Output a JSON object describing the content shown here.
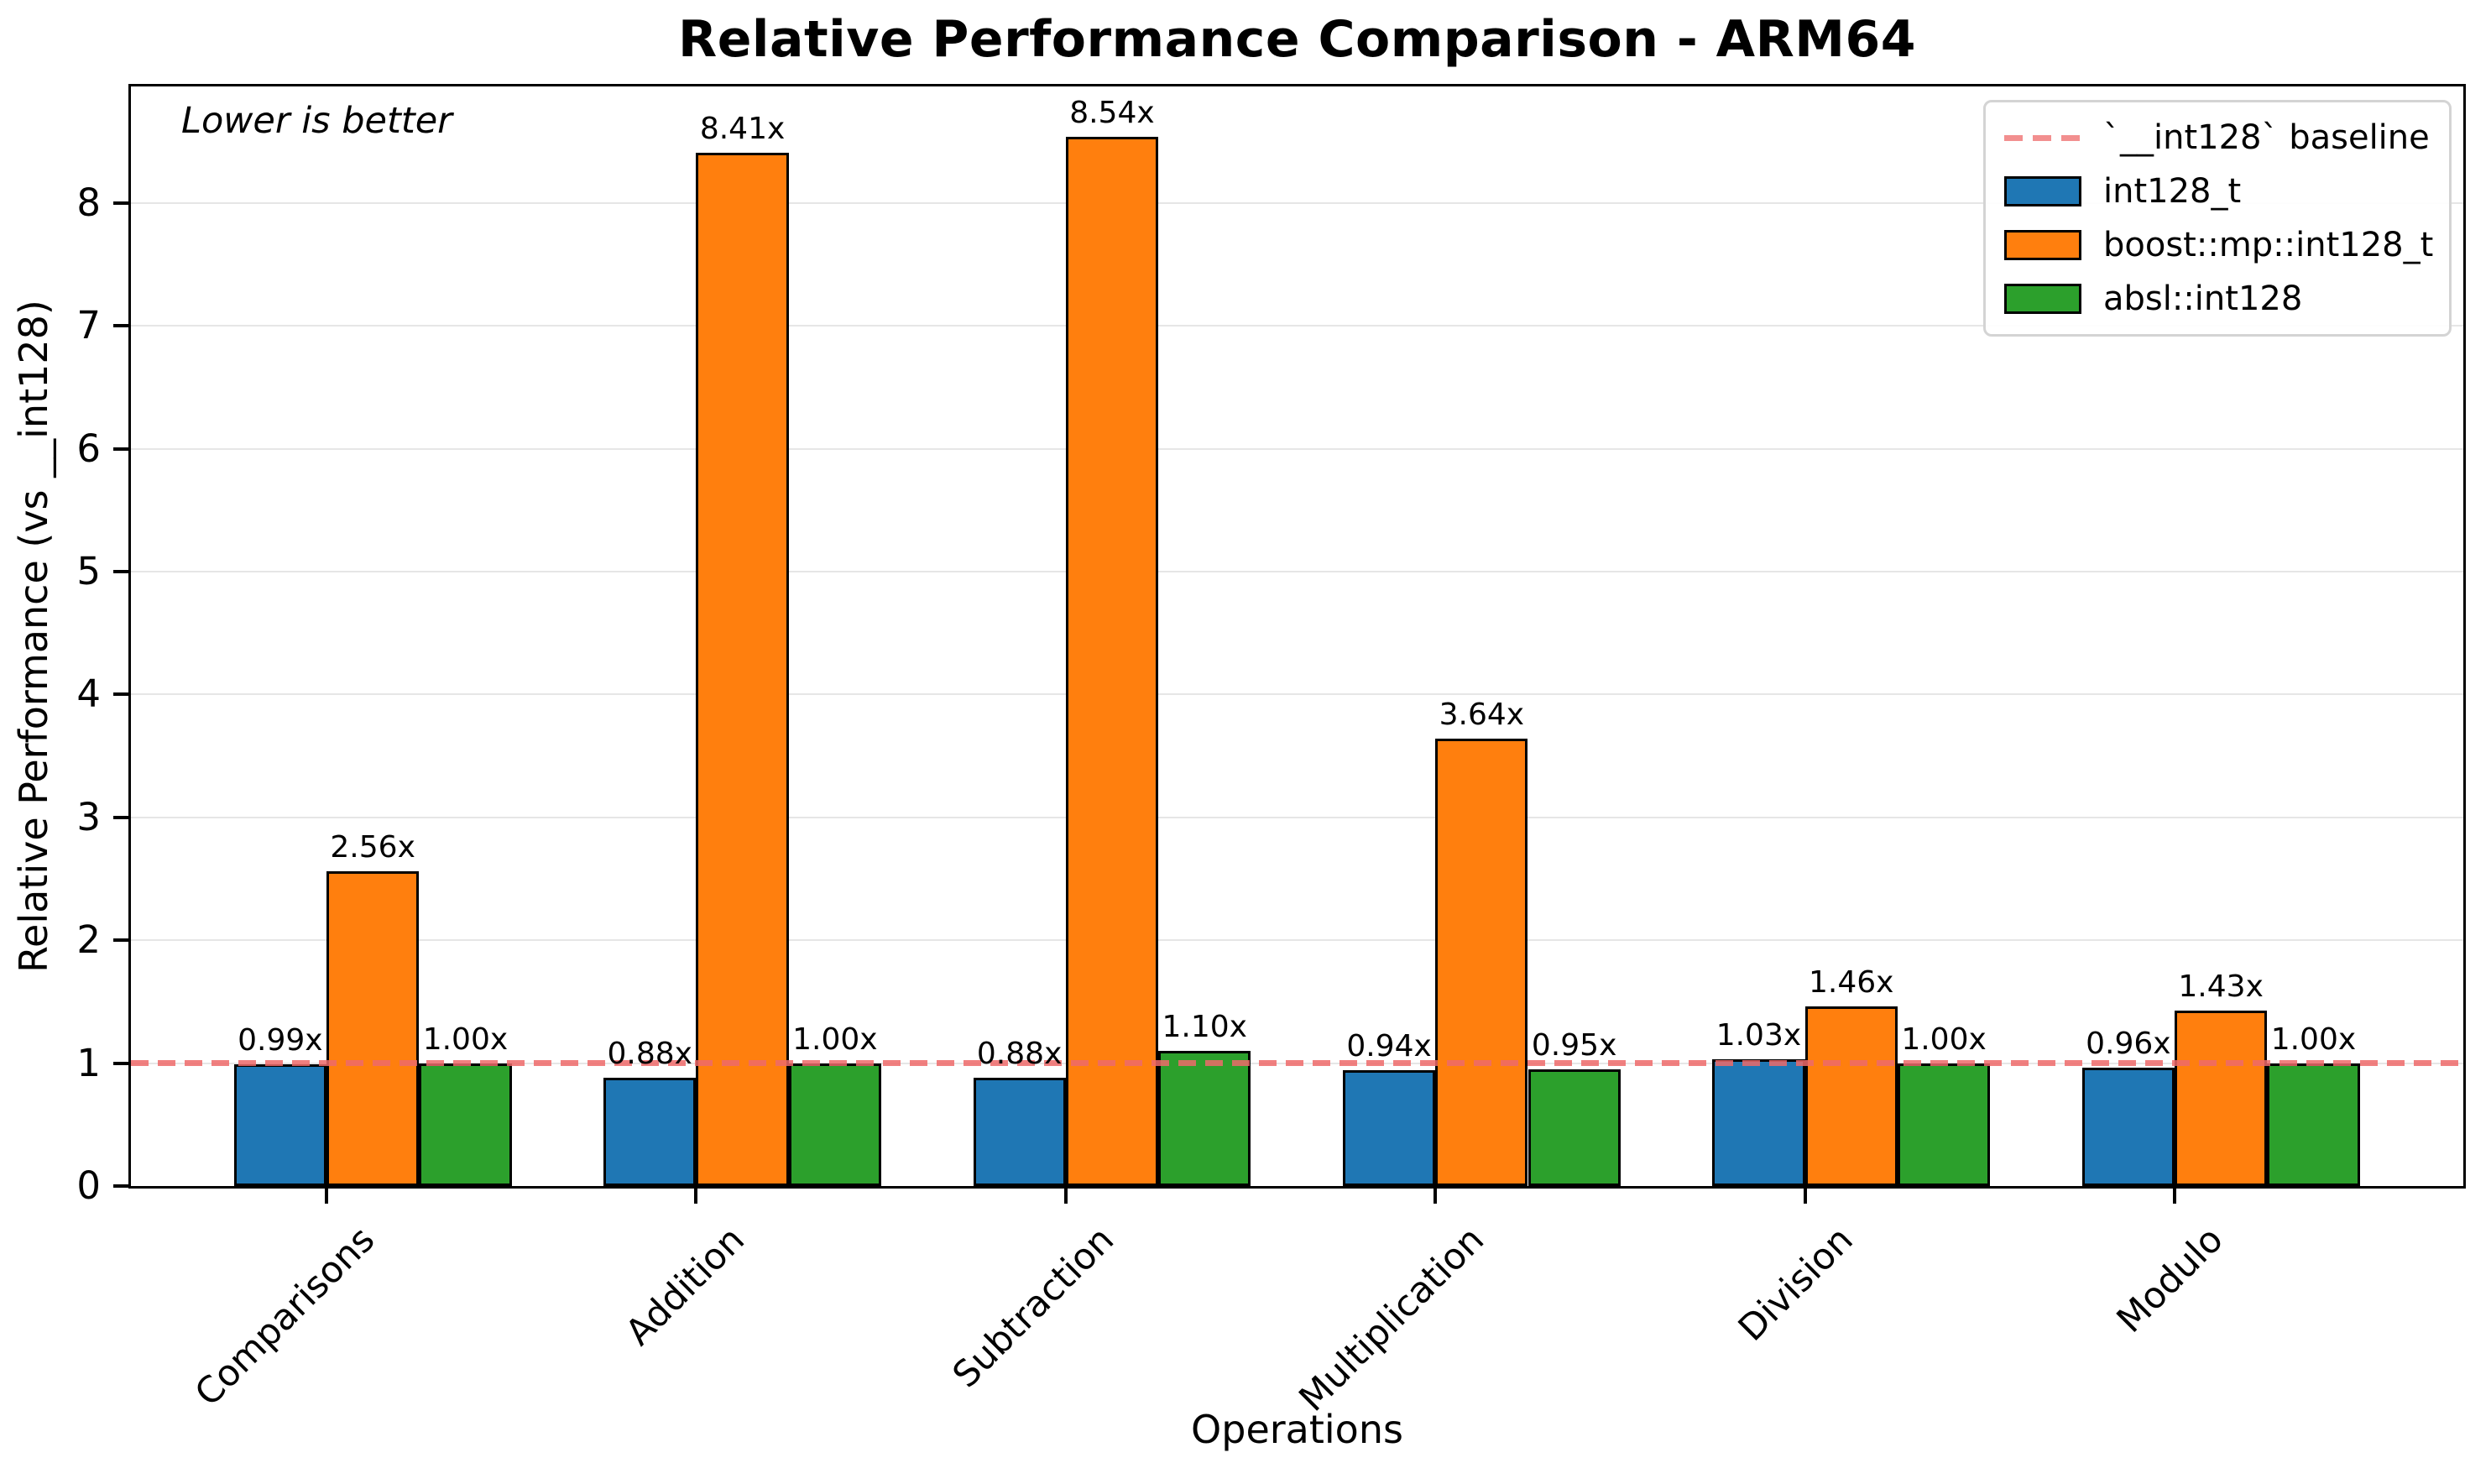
{
  "chart_data": {
    "type": "bar",
    "title": "Relative Performance Comparison - ARM64",
    "xlabel": "Operations",
    "ylabel": "Relative Performance (vs __int128)",
    "annotation": "Lower is better",
    "categories": [
      "Comparisons",
      "Addition",
      "Subtraction",
      "Multiplication",
      "Division",
      "Modulo"
    ],
    "series": [
      {
        "name": "int128_t",
        "color": "#1f77b4",
        "values": [
          0.99,
          0.88,
          0.88,
          0.94,
          1.03,
          0.96
        ],
        "labels": [
          "0.99x",
          "0.88x",
          "0.88x",
          "0.94x",
          "1.03x",
          "0.96x"
        ]
      },
      {
        "name": "boost::mp::int128_t",
        "color": "#ff7f0e",
        "values": [
          2.56,
          8.41,
          8.54,
          3.64,
          1.46,
          1.43
        ],
        "labels": [
          "2.56x",
          "8.41x",
          "8.54x",
          "3.64x",
          "1.46x",
          "1.43x"
        ]
      },
      {
        "name": "absl::int128",
        "color": "#2ca02c",
        "values": [
          1.0,
          1.0,
          1.1,
          0.95,
          1.0,
          1.0
        ],
        "labels": [
          "1.00x",
          "1.00x",
          "1.10x",
          "0.95x",
          "1.00x",
          "1.00x"
        ]
      }
    ],
    "baseline": {
      "value": 1.0,
      "label": "`__int128` baseline",
      "color": "#ee6a6a"
    },
    "y_ticks": [
      0,
      1,
      2,
      3,
      4,
      5,
      6,
      7,
      8
    ],
    "ylim": [
      0,
      8.98
    ],
    "grid": "horizontal",
    "gridline_color": "#e6e6e6",
    "legend_position": "upper right"
  }
}
